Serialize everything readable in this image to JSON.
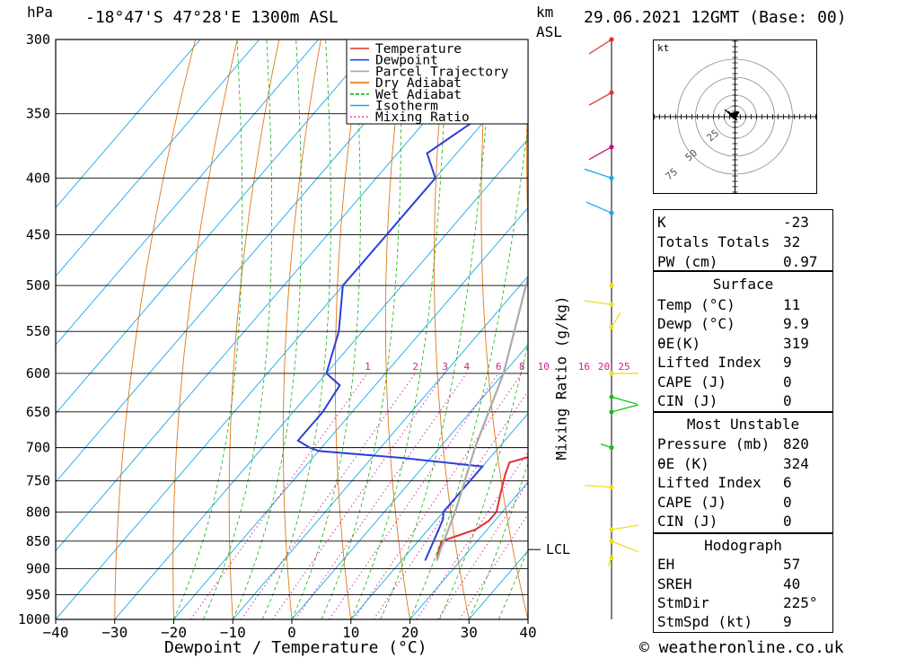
{
  "header": {
    "units_p": "hPa",
    "location": "-18°47'S  47°28'E  1300m  ASL",
    "units_km": "km",
    "units_asl": "ASL",
    "datetime": "29.06.2021  12GMT  (Base: 00)"
  },
  "chart_data": {
    "type": "line",
    "xlabel": "Dewpoint / Temperature (°C)",
    "ylabel_right": "Mixing Ratio (g/kg)",
    "xlim": [
      -40,
      40
    ],
    "ylim": [
      1000,
      300
    ],
    "x_ticks": [
      "-40",
      "-30",
      "-20",
      "-10",
      "0",
      "10",
      "20",
      "30",
      "40"
    ],
    "pressure_levels": [
      "300",
      "350",
      "400",
      "450",
      "500",
      "550",
      "600",
      "650",
      "700",
      "750",
      "800",
      "850",
      "900",
      "950",
      "1000"
    ],
    "mixing_ratio_labels": [
      "1",
      "2",
      "3",
      "4",
      "6",
      "8",
      "10",
      "16",
      "20",
      "25"
    ],
    "lcl_label": "LCL",
    "lcl_pressure": 865,
    "legend": [
      {
        "name": "Temperature",
        "color": "#e03030"
      },
      {
        "name": "Dewpoint",
        "color": "#2a40d8"
      },
      {
        "name": "Parcel Trajectory",
        "color": "#aaaaaa"
      },
      {
        "name": "Dry Adiabat",
        "color": "#e07818"
      },
      {
        "name": "Wet Adiabat",
        "color": "#18b018"
      },
      {
        "name": "Isotherm",
        "color": "#18a8e8"
      },
      {
        "name": "Mixing Ratio",
        "color": "#d0208a"
      }
    ],
    "series": [
      {
        "name": "Temperature",
        "points": [
          [
            885,
            16
          ],
          [
            870,
            15
          ],
          [
            850,
            14
          ],
          [
            830,
            18
          ],
          [
            815,
            19
          ],
          [
            800,
            19
          ],
          [
            770,
            17
          ],
          [
            740,
            15
          ],
          [
            722,
            14
          ],
          [
            712,
            17
          ],
          [
            700,
            21
          ],
          [
            690,
            21
          ],
          [
            670,
            19
          ],
          [
            650,
            17
          ],
          [
            625,
            15
          ],
          [
            610,
            14
          ],
          [
            600,
            14
          ],
          [
            560,
            12
          ],
          [
            520,
            9
          ],
          [
            500,
            8
          ],
          [
            460,
            5
          ],
          [
            440,
            3
          ],
          [
            420,
            1
          ],
          [
            400,
            -1
          ],
          [
            380,
            0
          ],
          [
            360,
            -1
          ],
          [
            340,
            -2
          ],
          [
            320,
            -4
          ],
          [
            300,
            -5
          ]
        ]
      },
      {
        "name": "Dewpoint",
        "points": [
          [
            885,
            14
          ],
          [
            860,
            13
          ],
          [
            835,
            12
          ],
          [
            812,
            11
          ],
          [
            800,
            10
          ],
          [
            760,
            10
          ],
          [
            728,
            10
          ],
          [
            715,
            -5
          ],
          [
            705,
            -20
          ],
          [
            700,
            -22
          ],
          [
            690,
            -25
          ],
          [
            670,
            -25
          ],
          [
            650,
            -25
          ],
          [
            615,
            -26
          ],
          [
            600,
            -30
          ],
          [
            550,
            -34
          ],
          [
            500,
            -40
          ],
          [
            480,
            -40
          ],
          [
            450,
            -40
          ],
          [
            430,
            -40
          ],
          [
            400,
            -40
          ],
          [
            380,
            -45
          ],
          [
            350,
            -41
          ],
          [
            320,
            -41
          ],
          [
            300,
            -41
          ]
        ]
      },
      {
        "name": "Parcel Trajectory",
        "points": [
          [
            885,
            16
          ],
          [
            865,
            15
          ],
          [
            800,
            12
          ],
          [
            700,
            6
          ],
          [
            600,
            0
          ],
          [
            500,
            -9
          ],
          [
            450,
            -14
          ],
          [
            400,
            -21
          ],
          [
            350,
            -29
          ],
          [
            300,
            -38
          ]
        ]
      }
    ]
  },
  "hodograph": {
    "unit": "kt",
    "ring_labels": [
      "25",
      "50",
      "75"
    ]
  },
  "indices": {
    "k_label": "K",
    "k_val": "-23",
    "tt_label": "Totals Totals",
    "tt_val": "32",
    "pw_label": "PW (cm)",
    "pw_val": "0.97"
  },
  "surface": {
    "title": "Surface",
    "temp_label": "Temp (°C)",
    "temp_val": "11",
    "dewp_label": "Dewp (°C)",
    "dewp_val": "9.9",
    "theta_label": "θE(K)",
    "theta_val": "319",
    "li_label": "Lifted Index",
    "li_val": "9",
    "cape_label": "CAPE (J)",
    "cape_val": "0",
    "cin_label": "CIN (J)",
    "cin_val": "0"
  },
  "most_unstable": {
    "title": "Most Unstable",
    "press_label": "Pressure (mb)",
    "press_val": "820",
    "theta_label": "θE (K)",
    "theta_val": "324",
    "li_label": "Lifted Index",
    "li_val": "6",
    "cape_label": "CAPE (J)",
    "cape_val": "0",
    "cin_label": "CIN (J)",
    "cin_val": "0"
  },
  "hodo_table": {
    "title": "Hodograph",
    "eh_label": "EH",
    "eh_val": "57",
    "sreh_label": "SREH",
    "sreh_val": "40",
    "stmdir_label": "StmDir",
    "stmdir_val": "225°",
    "stmspd_label": "StmSpd (kt)",
    "stmspd_val": "9"
  },
  "footer": {
    "copyright": "© weatheronline.co.uk"
  },
  "colors": {
    "temperature": "#e03030",
    "dewpoint": "#2a40d8",
    "parcel": "#aaaaaa",
    "dry_adiabat": "#e07818",
    "wet_adiabat": "#18b018",
    "isotherm": "#18a8e8",
    "mixing_ratio": "#d0208a"
  }
}
